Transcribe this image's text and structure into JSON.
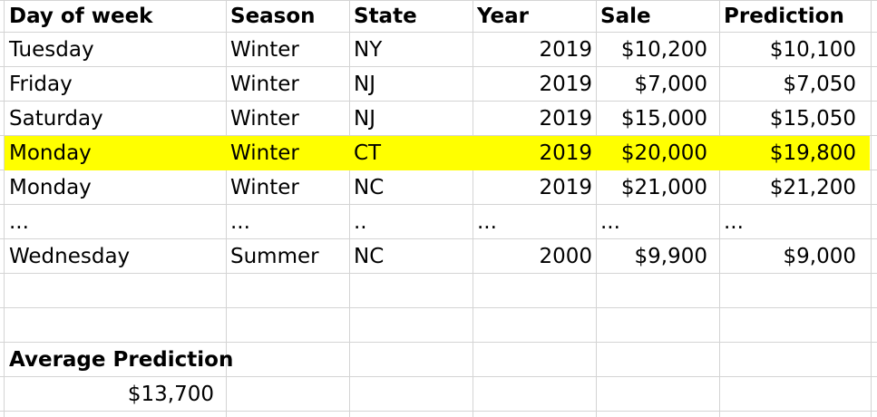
{
  "headers": {
    "day": "Day of week",
    "season": "Season",
    "state": "State",
    "year": "Year",
    "sale": "Sale",
    "prediction": "Prediction"
  },
  "rows": [
    {
      "day": "Tuesday",
      "season": "Winter",
      "state": "NY",
      "year": "2019",
      "sale": "$10,200",
      "prediction": "$10,100"
    },
    {
      "day": "Friday",
      "season": "Winter",
      "state": "NJ",
      "year": "2019",
      "sale": "$7,000",
      "prediction": "$7,050"
    },
    {
      "day": "Saturday",
      "season": "Winter",
      "state": "NJ",
      "year": "2019",
      "sale": "$15,000",
      "prediction": "$15,050"
    },
    {
      "day": "Monday",
      "season": "Winter",
      "state": "CT",
      "year": "2019",
      "sale": "$20,000",
      "prediction": "$19,800"
    },
    {
      "day": "Monday",
      "season": "Winter",
      "state": "NC",
      "year": "2019",
      "sale": "$21,000",
      "prediction": "$21,200"
    },
    {
      "day": "...",
      "season": "...",
      "state": "..",
      "year": "...",
      "sale": "...",
      "prediction": "..."
    },
    {
      "day": "Wednesday",
      "season": "Summer",
      "state": "NC",
      "year": "2000",
      "sale": "$9,900",
      "prediction": "$9,000"
    }
  ],
  "highlight_color": "#ffff00",
  "summary": {
    "label": "Average Prediction",
    "value": "$13,700"
  }
}
